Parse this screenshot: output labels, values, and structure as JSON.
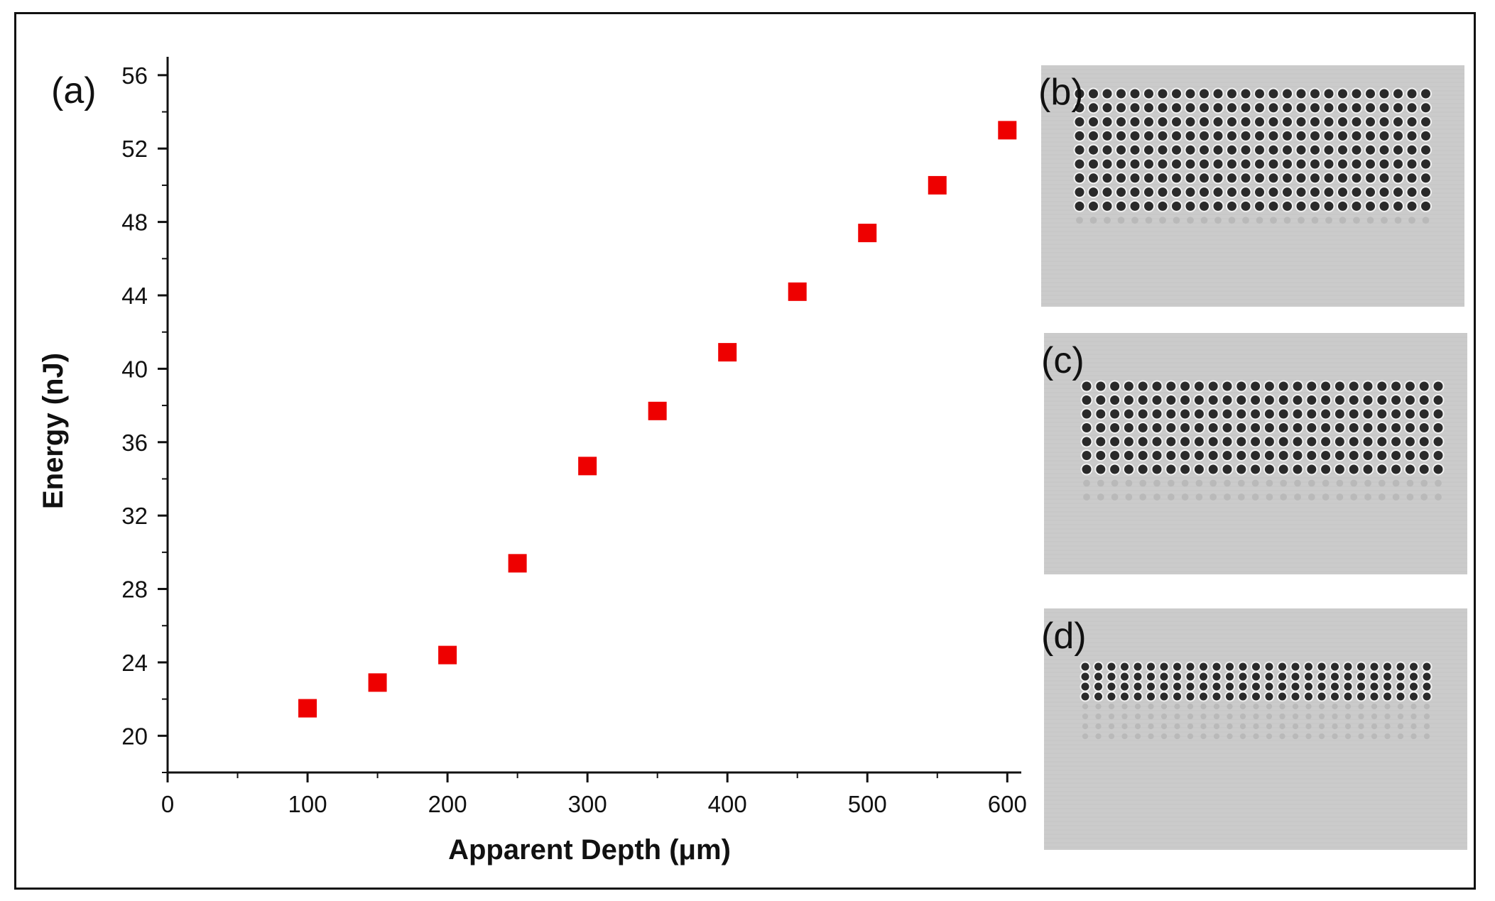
{
  "figure": {
    "panel_a_label": "(a)",
    "panel_b_label": "(b)",
    "panel_c_label": "(c)",
    "panel_d_label": "(d)"
  },
  "chart_data": {
    "type": "scatter",
    "title": "",
    "xlabel": "Apparent Depth (μm)",
    "ylabel": "Energy (nJ)",
    "xlim": [
      0,
      610
    ],
    "ylim": [
      18,
      57
    ],
    "xticks": [
      0,
      100,
      200,
      300,
      400,
      500,
      600
    ],
    "yticks": [
      20,
      24,
      28,
      32,
      36,
      40,
      44,
      48,
      52,
      56
    ],
    "series": [
      {
        "name": "Energy",
        "color": "#ee0000",
        "marker": "square",
        "x": [
          100,
          150,
          200,
          250,
          300,
          350,
          400,
          450,
          500,
          550,
          600
        ],
        "y": [
          21.5,
          22.9,
          24.4,
          29.4,
          34.7,
          37.7,
          40.9,
          44.2,
          47.4,
          50.0,
          53.0
        ]
      }
    ]
  },
  "images": {
    "panel_b": {
      "rows": 9,
      "cols": 26,
      "faded_rows": 1
    },
    "panel_c": {
      "rows": 7,
      "cols": 26,
      "faded_rows": 2
    },
    "panel_d": {
      "rows": 4,
      "cols": 27,
      "faded_rows": 4
    }
  }
}
